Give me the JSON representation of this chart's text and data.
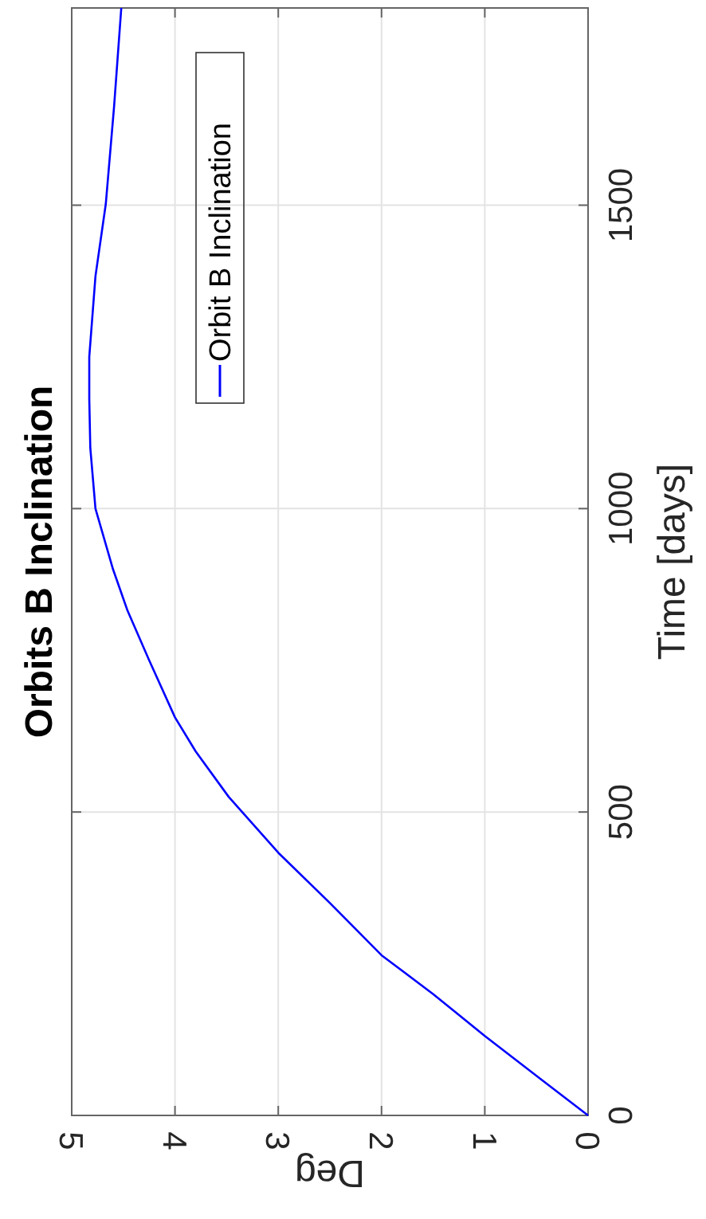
{
  "chart_data": {
    "type": "line",
    "title": "Orbits B Inclination",
    "xlabel": "Deg",
    "ylabel": "Time [days]",
    "xlim": [
      5,
      0
    ],
    "ylim": [
      0,
      1825
    ],
    "xticks": [
      0,
      1,
      2,
      3,
      4,
      5
    ],
    "yticks": [
      0,
      500,
      1000,
      1500
    ],
    "grid": true,
    "legend": "top left",
    "marker": "none",
    "line_style": "solid",
    "series": [
      {
        "name": "Orbit B Inclination",
        "color": "#0000ff",
        "x": [
          0,
          0.46,
          1.0,
          1.5,
          2.0,
          2.5,
          3.0,
          3.48,
          3.8,
          4.0,
          4.25,
          4.46,
          4.6,
          4.77,
          4.82,
          4.83,
          4.83,
          4.77,
          4.67,
          4.59,
          4.52
        ],
        "values": [
          0,
          60,
          131,
          200,
          264,
          350,
          433,
          525,
          600,
          656,
          750,
          832,
          900,
          1000,
          1100,
          1181,
          1250,
          1383,
          1502,
          1662,
          1825
        ]
      }
    ]
  }
}
